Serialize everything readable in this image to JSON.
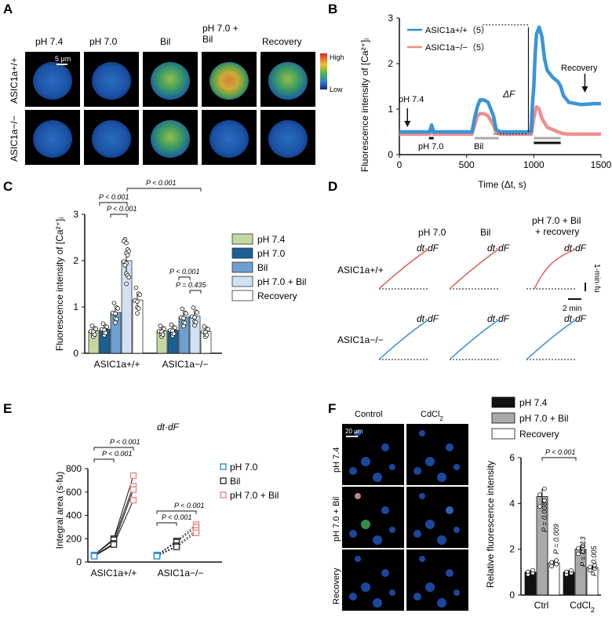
{
  "panel_letters": [
    "A",
    "B",
    "C",
    "D",
    "E",
    "F"
  ],
  "panelA": {
    "col_labels": [
      "pH 7.4",
      "pH 7.0",
      "Bil",
      "pH 7.0 +\nBil",
      "Recovery"
    ],
    "row_labels": [
      "ASIC1a+/+",
      "ASIC1a−/−"
    ],
    "scale_bar": "5 μm",
    "colorbar_high": "High",
    "colorbar_low": "Low"
  },
  "panelF_images": {
    "col_labels": [
      "Control",
      "CdCl2"
    ],
    "row_labels": [
      "pH 7.4",
      "pH 7.0 + Bil",
      "Recovery"
    ],
    "scale_bar": "20 μm"
  },
  "panelD": {
    "col_labels": [
      "pH 7.0",
      "Bil",
      "pH 7.0 + Bil\n+ recovery"
    ],
    "row_labels": [
      "ASIC1a+/+",
      "ASIC1a−/−"
    ],
    "trace_label": "dt·dF",
    "scale_y": "1-min·fu",
    "scale_x": "2 min",
    "colors": {
      "wt": "#e2574c",
      "ko": "#2f8fd6"
    }
  },
  "chart_data": [
    {
      "panel": "B",
      "type": "line",
      "xlabel": "Time (Δt, s)",
      "ylabel": "Fluorescence intensity of [Ca²⁺]ᵢ",
      "xlim": [
        0,
        1500
      ],
      "ylim": [
        0,
        3
      ],
      "xticks": [
        "0",
        "500",
        "1000",
        "1500"
      ],
      "yticks": [
        "0",
        "1",
        "2",
        "3"
      ],
      "legend_position": "top-right",
      "series": [
        {
          "name": "ASIC1a+/+（5）",
          "color": "#2f8fd6",
          "x": [
            0,
            200,
            225,
            240,
            255,
            300,
            540,
            560,
            580,
            600,
            630,
            660,
            700,
            720,
            750,
            900,
            970,
            980,
            990,
            1000,
            1010,
            1020,
            1040,
            1060,
            1080,
            1100,
            1140,
            1180,
            1200,
            1220,
            1260,
            1350,
            1450,
            1500
          ],
          "y": [
            0.5,
            0.5,
            0.5,
            0.65,
            0.5,
            0.5,
            0.5,
            0.8,
            1.05,
            1.2,
            1.2,
            1.15,
            0.85,
            0.55,
            0.5,
            0.5,
            0.5,
            0.5,
            1.1,
            1.5,
            2.2,
            2.65,
            2.8,
            2.6,
            2.1,
            1.85,
            1.7,
            1.6,
            1.5,
            1.3,
            1.15,
            1.1,
            1.12,
            1.12
          ]
        },
        {
          "name": "ASIC1a−/−（5）",
          "color": "#ec8a8a",
          "x": [
            0,
            200,
            225,
            240,
            255,
            300,
            540,
            560,
            580,
            600,
            630,
            660,
            700,
            720,
            750,
            900,
            970,
            980,
            990,
            1000,
            1010,
            1020,
            1040,
            1060,
            1080,
            1100,
            1140,
            1180,
            1200,
            1220,
            1260,
            1350,
            1450,
            1500
          ],
          "y": [
            0.45,
            0.45,
            0.45,
            0.55,
            0.45,
            0.45,
            0.45,
            0.65,
            0.85,
            0.9,
            0.9,
            0.85,
            0.65,
            0.48,
            0.45,
            0.45,
            0.45,
            0.45,
            0.6,
            0.8,
            0.95,
            1.05,
            1.0,
            0.8,
            0.7,
            0.6,
            0.55,
            0.5,
            0.48,
            0.46,
            0.45,
            0.45,
            0.45,
            0.45
          ]
        }
      ],
      "annotations": [
        "pH 7.4",
        "pH 7.0",
        "Bil",
        "ΔF",
        "Recovery"
      ]
    },
    {
      "panel": "C",
      "type": "bar",
      "ylabel": "Fluorescence intensity of [Ca²⁺]ᵢ",
      "ylim": [
        0,
        3
      ],
      "yticks": [
        "0",
        "1",
        "2",
        "3"
      ],
      "categories": [
        "ASIC1a+/+",
        "ASIC1a−/−"
      ],
      "series": [
        {
          "name": "pH 7.4",
          "color": "#c5d8a4",
          "values": [
            0.48,
            0.48
          ]
        },
        {
          "name": "pH 7.0",
          "color": "#1b5f94",
          "values": [
            0.52,
            0.5
          ]
        },
        {
          "name": "Bil",
          "color": "#6d9fcf",
          "values": [
            0.88,
            0.78
          ]
        },
        {
          "name": "pH 7.0 + Bil",
          "color": "#cfe1f2",
          "values": [
            2.0,
            0.8
          ]
        },
        {
          "name": "Recovery",
          "color": "#ffffff",
          "values": [
            1.15,
            0.47
          ]
        }
      ],
      "annotations": [
        "P < 0.001",
        "P < 0.001",
        "P < 0.001",
        "P < 0.001",
        "P = 0.435"
      ],
      "legend_position": "right"
    },
    {
      "panel": "E",
      "type": "line",
      "title": "dt·dF",
      "ylabel": "Integral area (s·fu)",
      "ylim": [
        0,
        800
      ],
      "yticks": [
        "0",
        "200",
        "400",
        "600",
        "800"
      ],
      "categories": [
        "ASIC1a+/+",
        "ASIC1a−/−"
      ],
      "series": [
        {
          "name": "pH 7.0",
          "color": "#2f8fd6",
          "values_wt": [
            60,
            58,
            52,
            50
          ],
          "values_ko": [
            60,
            56,
            52,
            50
          ]
        },
        {
          "name": "Bil",
          "color": "#333333",
          "values_wt": [
            200,
            190,
            160,
            150
          ],
          "values_ko": [
            180,
            170,
            140,
            130
          ]
        },
        {
          "name": "pH 7.0 + Bil",
          "color": "#ec8a8a",
          "values_wt": [
            740,
            650,
            620,
            530
          ],
          "values_ko": [
            320,
            300,
            270,
            250
          ]
        }
      ],
      "annotations": [
        "P < 0.001",
        "P < 0.001",
        "P < 0.001",
        "P < 0.001"
      ],
      "legend_position": "top-right"
    },
    {
      "panel": "F",
      "type": "bar",
      "ylabel": "Relative fluorescence intensity",
      "ylim": [
        0,
        6
      ],
      "yticks": [
        "0",
        "2",
        "4",
        "6"
      ],
      "categories": [
        "Ctrl",
        "CdCl2"
      ],
      "series": [
        {
          "name": "pH 7.4",
          "color": "#111111",
          "values": [
            1.0,
            1.0
          ]
        },
        {
          "name": "pH 7.0 + Bil",
          "color": "#a9a9a9",
          "values": [
            4.3,
            2.0
          ]
        },
        {
          "name": "Recovery",
          "color": "#ffffff",
          "values": [
            1.4,
            1.2
          ]
        }
      ],
      "annotations": [
        "P < 0.001",
        "P = 0.008",
        "P = 0.009",
        "P = 0.013",
        "P = 0.005"
      ],
      "legend_position": "top-right"
    }
  ]
}
